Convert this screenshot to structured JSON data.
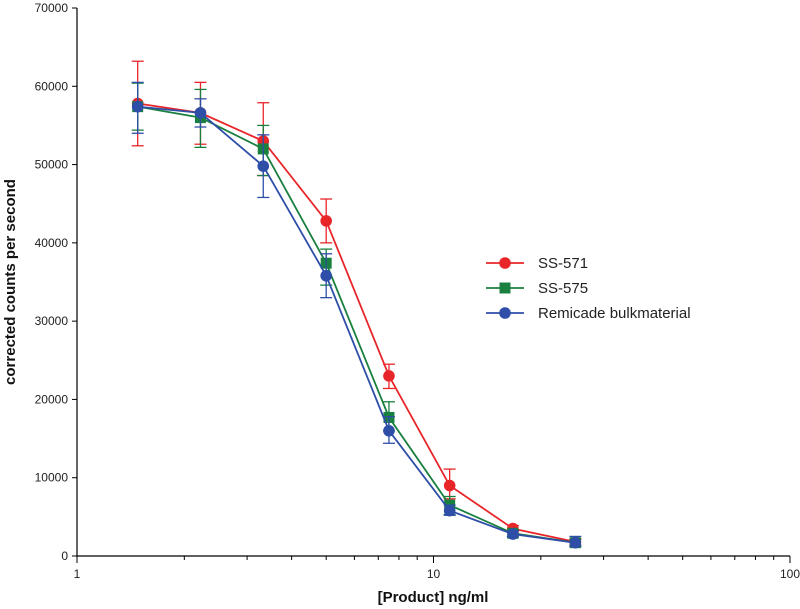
{
  "chart_data": {
    "type": "line",
    "title": "",
    "xlabel": "[Product] ng/ml",
    "ylabel": "corrected counts per second",
    "xscale": "log",
    "xlim": [
      1,
      100
    ],
    "ylim": [
      0,
      70000
    ],
    "grid": false,
    "legend_position": "right-center",
    "x_ticks": [
      1,
      10,
      100
    ],
    "x_tick_labels": [
      "1",
      "10",
      "100"
    ],
    "y_ticks": [
      0,
      10000,
      20000,
      30000,
      40000,
      50000,
      60000,
      70000
    ],
    "y_tick_labels": [
      "0",
      "10000",
      "20000",
      "30000",
      "40000",
      "50000",
      "60000",
      "70000"
    ],
    "series": [
      {
        "name": "SS-571",
        "color": "#e8262a",
        "marker": "circle",
        "x": [
          1.48,
          2.22,
          3.33,
          5.0,
          7.5,
          11.1,
          16.7,
          25.0
        ],
        "values": [
          57800,
          56600,
          53000,
          42800,
          23000,
          9000,
          3500,
          1800
        ],
        "err_low": [
          52400,
          52600,
          48600,
          40000,
          21400,
          7300,
          3100,
          1400
        ],
        "err_high": [
          63200,
          60500,
          57900,
          45600,
          24500,
          11100,
          3900,
          2200
        ]
      },
      {
        "name": "SS-575",
        "color": "#1a8040",
        "marker": "square",
        "x": [
          1.48,
          2.22,
          3.33,
          5.0,
          7.5,
          11.1,
          16.7,
          25.0
        ],
        "values": [
          57400,
          56000,
          52000,
          37400,
          17700,
          6500,
          2900,
          1700
        ],
        "err_low": [
          54400,
          52200,
          48600,
          34600,
          16000,
          5300,
          2500,
          1300
        ],
        "err_high": [
          60400,
          59600,
          55000,
          39200,
          19700,
          7600,
          3300,
          2100
        ]
      },
      {
        "name": "Remicade bulkmaterial",
        "color": "#2e4ea8",
        "marker": "circle",
        "x": [
          1.48,
          2.22,
          3.33,
          5.0,
          7.5,
          11.1,
          16.7,
          25.0
        ],
        "values": [
          57400,
          56600,
          49800,
          35800,
          16000,
          5800,
          2800,
          1700
        ],
        "err_low": [
          54000,
          54800,
          45800,
          33000,
          14400,
          5200,
          2400,
          1200
        ],
        "err_high": [
          60500,
          58400,
          53800,
          38600,
          17800,
          6500,
          3200,
          2500
        ]
      }
    ]
  }
}
